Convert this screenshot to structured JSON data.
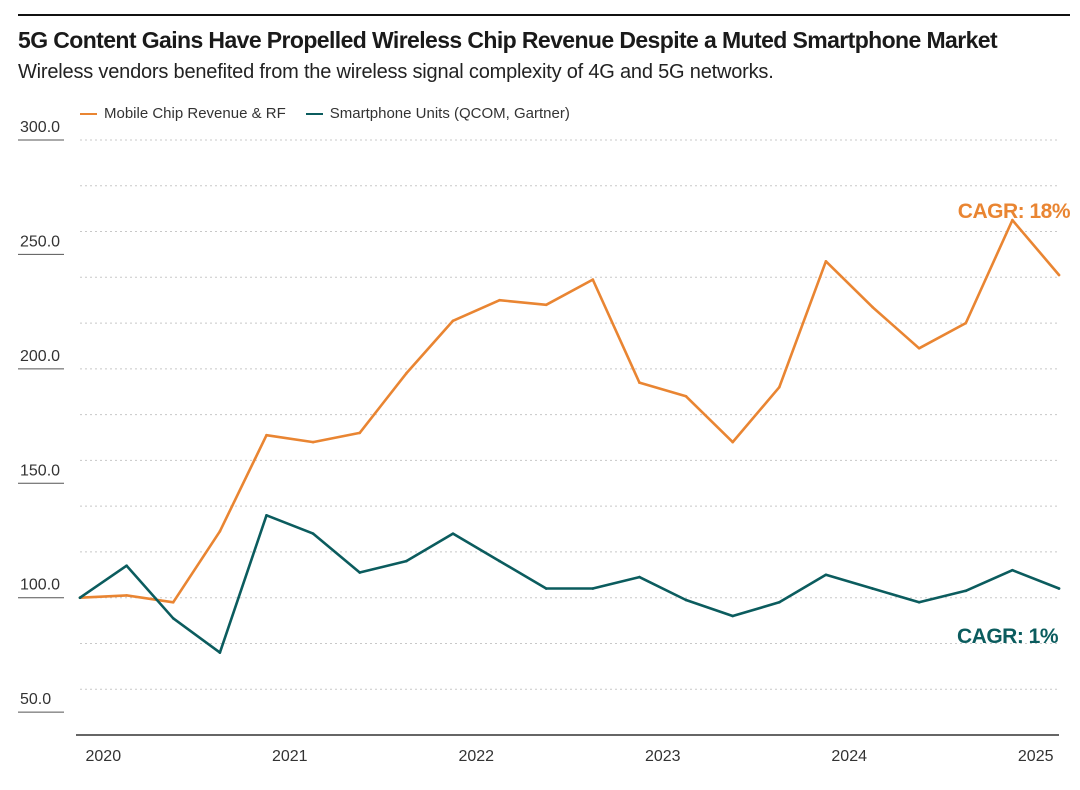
{
  "header": {
    "title": "5G Content Gains Have Propelled Wireless Chip Revenue Despite a Muted Smartphone Market",
    "subtitle": "Wireless vendors benefited from the wireless signal complexity of 4G and 5G networks."
  },
  "colors": {
    "revenue": "#e98532",
    "units": "#0b5c5e",
    "grid": "#c8c8c8",
    "axis": "#333333"
  },
  "chart_data": {
    "type": "line",
    "title": "5G Content Gains Have Propelled Wireless Chip Revenue Despite a Muted Smartphone Market",
    "subtitle": "Wireless vendors benefited from the wireless signal complexity of 4G and 5G networks.",
    "xlabel": "",
    "ylabel": "",
    "ylim": [
      40,
      300
    ],
    "y_ticks": [
      "300.0",
      "250.0",
      "200.0",
      "150.0",
      "100.0",
      "50.0"
    ],
    "y_tick_values": [
      300,
      250,
      200,
      150,
      100,
      50
    ],
    "x_labels": [
      "2020",
      "2021",
      "2022",
      "2023",
      "2024",
      "2025"
    ],
    "x_label_positions": [
      0.5,
      4.5,
      8.5,
      12.5,
      16.5,
      20.5
    ],
    "x_range": [
      0,
      21
    ],
    "grid": true,
    "legend_position": "top-left",
    "series": [
      {
        "name": "Mobile Chip Revenue & RF",
        "color_key": "revenue",
        "annotation": "CAGR: 18%",
        "x": [
          0,
          1,
          2,
          3,
          4,
          5,
          6,
          7,
          8,
          9,
          10,
          11,
          12,
          13,
          14,
          15,
          16,
          17,
          18,
          19,
          20,
          21
        ],
        "values": [
          100,
          101,
          98,
          129,
          171,
          168,
          172,
          198,
          221,
          230,
          228,
          239,
          194,
          188,
          168,
          192,
          247,
          227,
          209,
          220,
          265,
          241
        ]
      },
      {
        "name": "Smartphone Units (QCOM, Gartner)",
        "color_key": "units",
        "annotation": "CAGR: 1%",
        "x": [
          0,
          1,
          2,
          3,
          4,
          5,
          6,
          7,
          8,
          9,
          10,
          11,
          12,
          13,
          14,
          15,
          16,
          17,
          18,
          19,
          20,
          21
        ],
        "values": [
          100,
          114,
          91,
          76,
          136,
          128,
          111,
          116,
          128,
          116,
          104,
          104,
          109,
          99,
          92,
          98,
          110,
          104,
          98,
          103,
          112,
          104
        ]
      }
    ]
  }
}
